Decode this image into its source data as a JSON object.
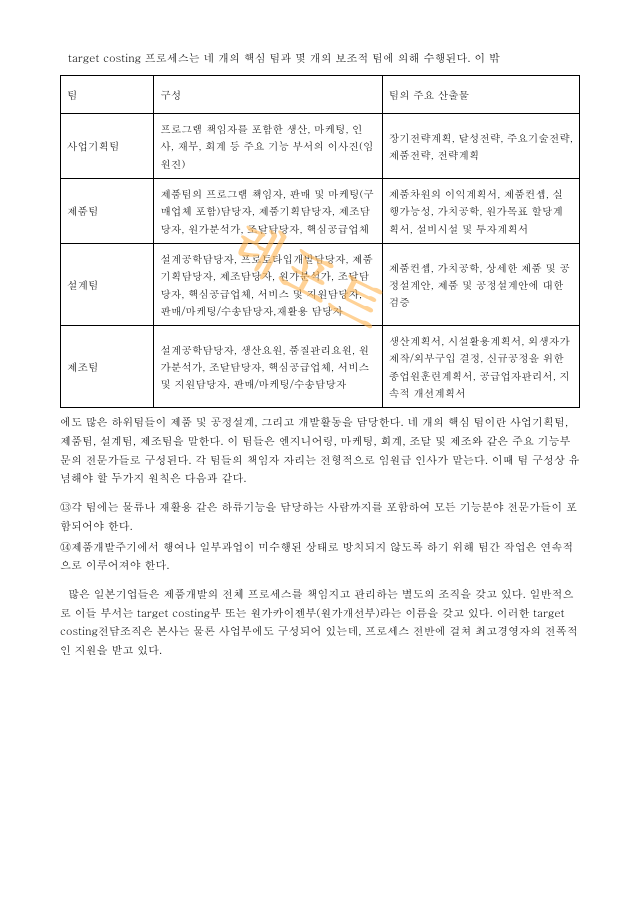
{
  "watermark": "레포트",
  "intro": "target costing 프로세스는 네 개의 핵심 팀과 몇 개의 보조적 팀에 의해 수행된다. 이 밖",
  "table": {
    "columns": [
      "팀",
      "구성",
      "팀의 주요 산출물"
    ],
    "rows": [
      [
        "사업기획팀",
        "프로그램 책임자를 포함한 생산, 마케팅, 인사, 재무, 회계 등 주요 기능 부서의 이사진(임원진)",
        "장기전략계획, 달성전략, 주요기술전략, 제품전략, 전략계획"
      ],
      [
        "제품팀",
        "제품팀의 프로그램 책임자, 판매 및 마케팅(구매업체 포함)담당자, 제품기획담당자, 제조담당자, 원가분석가, 조달담당자, 핵심공급업체",
        "제품차원의 이익계획서, 제품컨셉, 실행가능성, 가치공학, 원가목표 할당계획서, 설비시설 및 투자계획서"
      ],
      [
        "설계팀",
        "설계공학담당자, 프로토타입개발담당자, 제품기획담당자, 제조담당자, 원가분석가, 조달담당자, 핵심공급업체, 서비스 및 지원담당자, 판매/마케팅/수송담당자,재활용 담당자",
        "제품컨셉, 가치공학, 상세한 제품 및 공정설계안, 제품 및 공정설계안에 대한 검증"
      ],
      [
        "제조팀",
        "설계공학담당자, 생산요원, 품질관리요원, 원가분석가, 조달담당자, 핵심공급업체, 서비스 및 지원담당자, 판매/마케팅/수송담당자",
        "생산계획서, 시설활용계획서, 외생자가제작/외부구입 결정, 신규공정을 위한 종업원훈련계획서, 공급업자관리서, 지속적 개선계획서"
      ]
    ]
  },
  "bodyText": "에도 많은 하위팀들이 제품 및 공정설계, 그리고 개발활동을 담당한다. 네 개의 핵심 팀이란 사업기획팀, 제품팀, 설계팀, 제조팀을 말한다. 이 팀들은 엔지니어링, 마케팅, 회계, 조달 및 제조와 같은 주요 기능부문의 전문가들로 구성된다. 각 팀들의 책임자 자리는 전형적으로 임원급 인사가 맡는다. 이때 팀 구성상 유념해야 할 두가지 원칙은 다음과 같다.",
  "bullets": {
    "b1": "⑬각 팀에는 물류나 재활용 같은 하류기능을 담당하는 사람까지를 포함하여 모든 기능분야 전문가들이 포함되어야 한다.",
    "b2": "⑭제품개발주기에서 행여나 일부과업이 미수행된 상태로 방치되지 않도록 하기 위해 팀간 작업은 연속적으로 이루어져야 한다."
  },
  "para2": "많은 일본기업들은 제품개발의 전체 프로세스를 책임지고 관리하는 별도의 조직을 갖고 있다. 일반적으로 이들 부서는 target costing부 또는 원가카이젠부(원가개선부)라는 이름을 갖고 있다. 이러한 target costing전담조직은 본사는 물론 사업부에도 구성되어 있는데, 프로세스 전반에 걸쳐 최고경영자의 전폭적인 지원을 받고 있다."
}
